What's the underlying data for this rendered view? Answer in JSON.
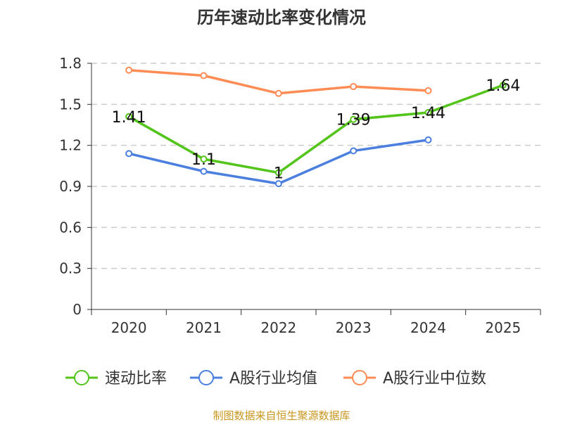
{
  "chart_data": {
    "type": "line",
    "title": "历年速动比率变化情况",
    "categories": [
      "2020",
      "2021",
      "2022",
      "2023",
      "2024",
      "2025"
    ],
    "ylim": [
      0,
      1.8
    ],
    "yticks": [
      "0",
      "0.3",
      "0.6",
      "0.9",
      "1.2",
      "1.5",
      "1.8"
    ],
    "ytick_values": [
      0,
      0.3,
      0.6,
      0.9,
      1.2,
      1.5,
      1.8
    ],
    "grid": true,
    "legend_position": "bottom",
    "series": [
      {
        "name": "速动比率",
        "color": "#52c41a",
        "values": [
          1.41,
          1.1,
          1,
          1.39,
          1.44,
          1.64
        ],
        "labels": [
          "1.41",
          "1.1",
          "1",
          "1.39",
          "1.44",
          "1.64"
        ],
        "show_labels": true
      },
      {
        "name": "A股行业均值",
        "color": "#4a7fe0",
        "values": [
          1.14,
          1.01,
          0.92,
          1.16,
          1.24,
          null
        ],
        "show_labels": false
      },
      {
        "name": "A股行业中位数",
        "color": "#ff8c55",
        "values": [
          1.75,
          1.71,
          1.58,
          1.63,
          1.6,
          null
        ],
        "show_labels": false
      }
    ],
    "source": "制图数据来自恒生聚源数据库",
    "source_color": "#c8961e"
  }
}
